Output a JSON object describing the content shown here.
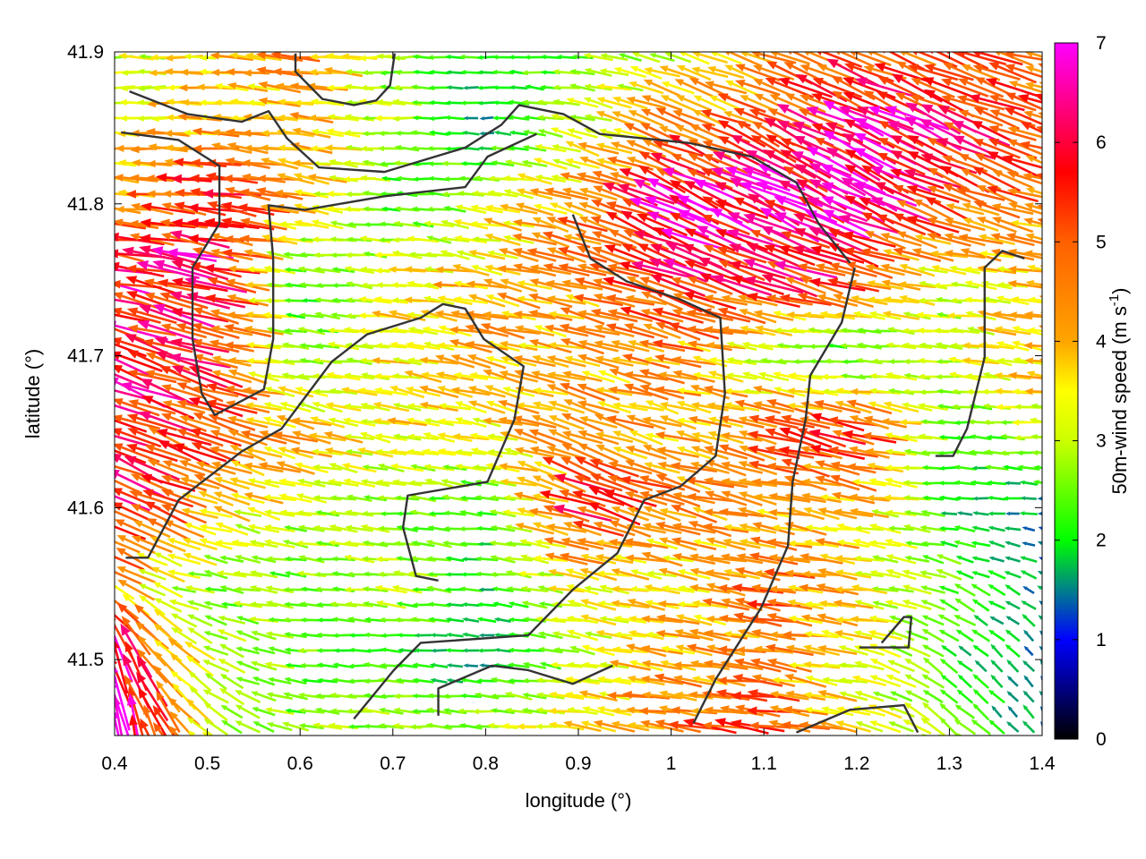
{
  "chart_data": {
    "type": "vector-field",
    "title": "",
    "xlabel": "longitude (°)",
    "ylabel": "latitude (°)",
    "xlim": [
      0.4,
      1.4
    ],
    "ylim": [
      41.45,
      41.9
    ],
    "xticks": [
      "0.4",
      "0.5",
      "0.6",
      "0.7",
      "0.8",
      "0.9",
      "1",
      "1.1",
      "1.2",
      "1.3",
      "1.4"
    ],
    "yticks": [
      "41.5",
      "41.6",
      "41.7",
      "41.8",
      "41.9"
    ],
    "grid": false,
    "colorbar": {
      "label_main": "50m-wind speed (m s",
      "label_sup": "-1",
      "label_end": ")",
      "range": [
        0,
        7
      ],
      "ticks": [
        "0",
        "1",
        "2",
        "3",
        "4",
        "5",
        "6",
        "7"
      ],
      "colormap": [
        {
          "v": 0,
          "c": "#000000"
        },
        {
          "v": 1,
          "c": "#0000ff"
        },
        {
          "v": 1.5,
          "c": "#00808a"
        },
        {
          "v": 2,
          "c": "#00ff00"
        },
        {
          "v": 3,
          "c": "#ccff00"
        },
        {
          "v": 3.5,
          "c": "#ffff00"
        },
        {
          "v": 4,
          "c": "#ffa500"
        },
        {
          "v": 5,
          "c": "#ff6000"
        },
        {
          "v": 5.7,
          "c": "#ff0000"
        },
        {
          "v": 7,
          "c": "#ff00ff"
        }
      ]
    },
    "wind_grid": {
      "lon": [
        0.4,
        0.5,
        0.6,
        0.7,
        0.8,
        0.9,
        1.0,
        1.1,
        1.2,
        1.3,
        1.4
      ],
      "lat": [
        41.9,
        41.85,
        41.8,
        41.75,
        41.7,
        41.65,
        41.6,
        41.55,
        41.5,
        41.45
      ],
      "speed": [
        [
          3,
          3.5,
          4.5,
          2.5,
          2,
          2.5,
          3,
          4,
          5,
          5,
          4.5
        ],
        [
          3.5,
          4,
          4,
          3,
          1.5,
          3,
          4.5,
          5,
          6.5,
          6,
          5
        ],
        [
          4,
          6,
          4,
          2,
          3,
          4.5,
          6.5,
          6.5,
          6.5,
          5,
          4.5
        ],
        [
          6,
          6,
          2,
          3.5,
          4,
          4.5,
          5.5,
          6,
          5,
          3,
          4
        ],
        [
          6,
          5.5,
          2.5,
          3.5,
          4,
          4,
          4.5,
          2.5,
          2,
          3,
          4
        ],
        [
          6,
          5,
          4,
          3.5,
          3.5,
          4.5,
          4,
          5,
          5.5,
          2,
          3
        ],
        [
          6,
          4,
          3,
          2.5,
          2,
          5.5,
          4.5,
          4,
          4,
          2,
          1.5
        ],
        [
          4,
          2.5,
          2.5,
          3,
          2,
          3.5,
          3.5,
          5,
          3.5,
          2.5,
          1.5
        ],
        [
          6.5,
          3,
          2.5,
          2,
          1.5,
          3,
          4,
          4.5,
          3.5,
          2,
          1.5
        ],
        [
          7,
          3,
          2.5,
          3,
          3,
          4,
          5,
          5,
          3.5,
          2.5,
          1.5
        ]
      ],
      "direction_deg": [
        [
          180,
          180,
          175,
          180,
          180,
          175,
          165,
          160,
          158,
          160,
          165
        ],
        [
          180,
          178,
          172,
          178,
          180,
          165,
          158,
          155,
          155,
          155,
          160
        ],
        [
          175,
          172,
          170,
          178,
          170,
          160,
          155,
          155,
          155,
          158,
          165
        ],
        [
          170,
          168,
          175,
          175,
          168,
          165,
          160,
          160,
          165,
          175,
          170
        ],
        [
          160,
          165,
          175,
          172,
          168,
          168,
          168,
          175,
          178,
          175,
          170
        ],
        [
          158,
          160,
          165,
          168,
          168,
          160,
          165,
          165,
          165,
          178,
          175
        ],
        [
          155,
          160,
          170,
          175,
          175,
          160,
          165,
          170,
          170,
          178,
          178
        ],
        [
          150,
          170,
          175,
          172,
          175,
          170,
          170,
          170,
          175,
          160,
          150
        ],
        [
          110,
          150,
          175,
          178,
          175,
          170,
          170,
          172,
          170,
          140,
          130
        ],
        [
          95,
          140,
          170,
          175,
          175,
          172,
          172,
          172,
          168,
          140,
          130
        ]
      ]
    },
    "contours": [
      [
        [
          0.416,
          41.874
        ],
        [
          0.479,
          41.859
        ],
        [
          0.537,
          41.854
        ],
        [
          0.566,
          41.861
        ],
        [
          0.586,
          41.843
        ],
        [
          0.62,
          41.824
        ],
        [
          0.691,
          41.821
        ],
        [
          0.778,
          41.837
        ],
        [
          0.817,
          41.852
        ],
        [
          0.836,
          41.865
        ],
        [
          0.884,
          41.859
        ],
        [
          0.923,
          41.846
        ],
        [
          1.02,
          41.84
        ],
        [
          1.087,
          41.831
        ],
        [
          1.135,
          41.814
        ],
        [
          1.159,
          41.787
        ],
        [
          1.193,
          41.761
        ]
      ],
      [
        [
          0.407,
          41.847
        ],
        [
          0.469,
          41.842
        ],
        [
          0.513,
          41.825
        ],
        [
          0.513,
          41.787
        ],
        [
          0.484,
          41.758
        ],
        [
          0.484,
          41.711
        ],
        [
          0.494,
          41.675
        ],
        [
          0.508,
          41.661
        ],
        [
          0.561,
          41.678
        ],
        [
          0.571,
          41.711
        ],
        [
          0.571,
          41.764
        ],
        [
          0.566,
          41.799
        ],
        [
          0.605,
          41.796
        ],
        [
          0.691,
          41.805
        ],
        [
          0.778,
          41.811
        ],
        [
          0.802,
          41.831
        ],
        [
          0.855,
          41.846
        ]
      ],
      [
        [
          0.412,
          41.567
        ],
        [
          0.436,
          41.567
        ],
        [
          0.469,
          41.605
        ],
        [
          0.537,
          41.637
        ],
        [
          0.58,
          41.652
        ],
        [
          0.634,
          41.696
        ],
        [
          0.672,
          41.714
        ],
        [
          0.73,
          41.725
        ],
        [
          0.754,
          41.734
        ],
        [
          0.778,
          41.731
        ],
        [
          0.798,
          41.711
        ],
        [
          0.841,
          41.693
        ],
        [
          0.831,
          41.658
        ],
        [
          0.802,
          41.617
        ],
        [
          0.716,
          41.608
        ],
        [
          0.711,
          41.587
        ],
        [
          0.725,
          41.555
        ],
        [
          0.749,
          41.552
        ]
      ],
      [
        [
          0.658,
          41.461
        ],
        [
          0.701,
          41.493
        ],
        [
          0.73,
          41.511
        ],
        [
          0.846,
          41.516
        ],
        [
          0.894,
          41.546
        ],
        [
          0.942,
          41.57
        ],
        [
          0.971,
          41.605
        ],
        [
          1.01,
          41.614
        ],
        [
          1.048,
          41.634
        ],
        [
          1.058,
          41.675
        ],
        [
          1.053,
          41.725
        ],
        [
          1.01,
          41.737
        ],
        [
          0.952,
          41.749
        ],
        [
          0.913,
          41.764
        ],
        [
          0.894,
          41.793
        ]
      ],
      [
        [
          1.024,
          41.458
        ],
        [
          1.048,
          41.487
        ],
        [
          1.097,
          41.534
        ],
        [
          1.126,
          41.575
        ],
        [
          1.131,
          41.617
        ],
        [
          1.145,
          41.658
        ],
        [
          1.15,
          41.687
        ],
        [
          1.184,
          41.722
        ],
        [
          1.198,
          41.758
        ]
      ],
      [
        [
          1.135,
          41.452
        ],
        [
          1.193,
          41.467
        ],
        [
          1.251,
          41.47
        ],
        [
          1.266,
          41.452
        ]
      ],
      [
        [
          1.285,
          41.634
        ],
        [
          1.304,
          41.634
        ],
        [
          1.319,
          41.652
        ],
        [
          1.338,
          41.699
        ],
        [
          1.338,
          41.758
        ],
        [
          1.357,
          41.769
        ],
        [
          1.381,
          41.764
        ]
      ],
      [
        [
          1.203,
          41.508
        ],
        [
          1.256,
          41.508
        ],
        [
          1.259,
          41.528
        ],
        [
          1.251,
          41.528
        ],
        [
          1.227,
          41.511
        ]
      ],
      [
        [
          0.595,
          41.899
        ],
        [
          0.595,
          41.887
        ],
        [
          0.624,
          41.869
        ],
        [
          0.658,
          41.865
        ],
        [
          0.682,
          41.868
        ],
        [
          0.697,
          41.878
        ],
        [
          0.702,
          41.899
        ]
      ],
      [
        [
          0.749,
          41.463
        ],
        [
          0.749,
          41.481
        ],
        [
          0.807,
          41.496
        ],
        [
          0.846,
          41.493
        ],
        [
          0.894,
          41.484
        ],
        [
          0.937,
          41.496
        ]
      ]
    ],
    "contour_color": "#333333"
  }
}
